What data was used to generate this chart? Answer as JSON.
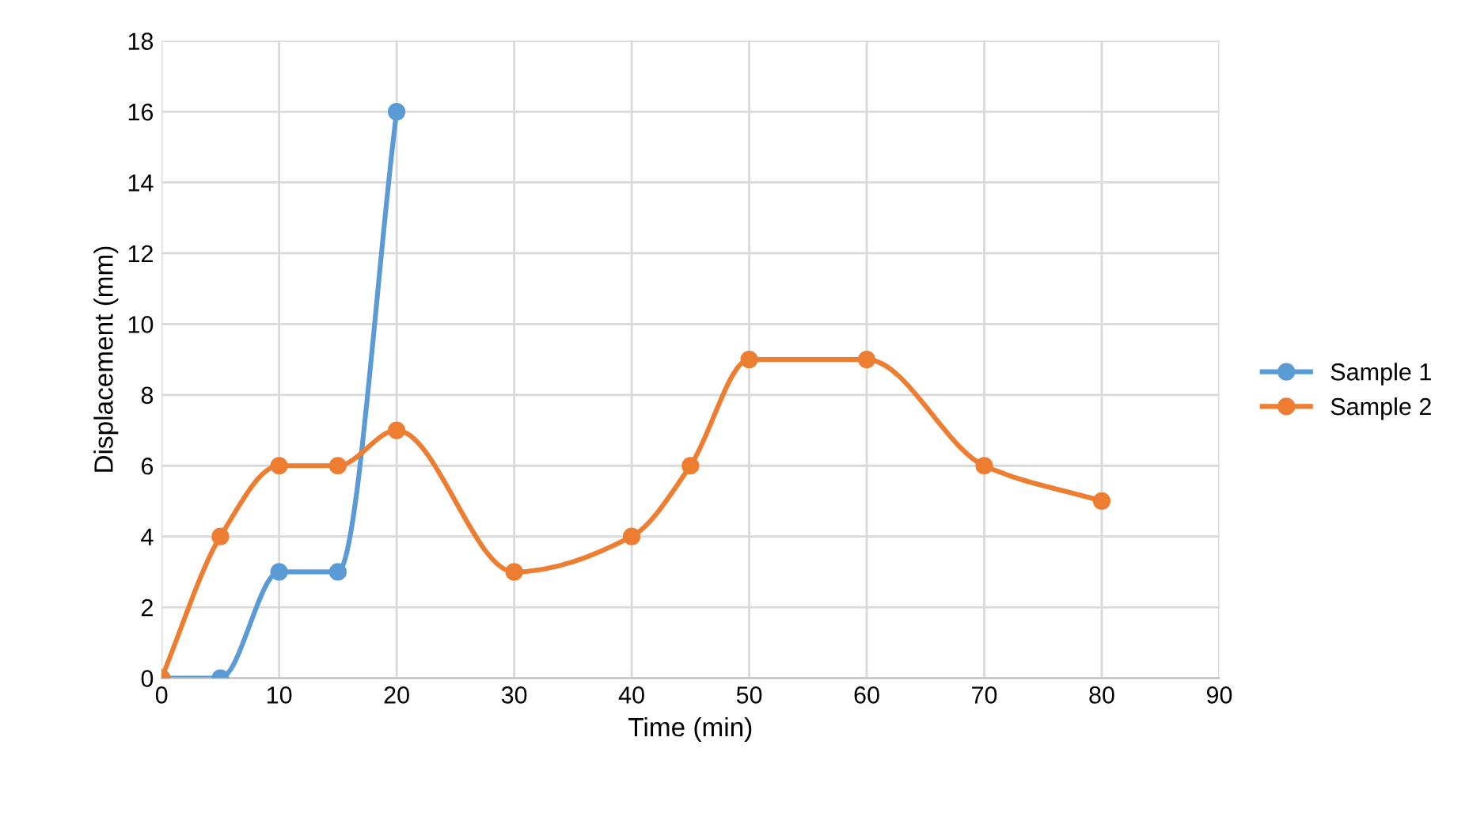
{
  "chart_data": {
    "type": "line",
    "xlabel": "Time (min)",
    "ylabel": "Displacement (mm)",
    "xlim": [
      0,
      90
    ],
    "xticks": [
      0,
      10,
      20,
      30,
      40,
      50,
      60,
      70,
      80,
      90
    ],
    "ylim": [
      0,
      18
    ],
    "yticks": [
      0,
      2,
      4,
      6,
      8,
      10,
      12,
      14,
      16,
      18
    ],
    "grid": true,
    "legend": "right",
    "marker": "circle",
    "line_style": "solid",
    "series": [
      {
        "name": "Sample 1",
        "color": "#5b9bd5",
        "x": [
          0,
          5,
          10,
          15,
          20
        ],
        "values": [
          0,
          0,
          3,
          3,
          16
        ]
      },
      {
        "name": "Sample 2",
        "color": "#ed7d31",
        "x": [
          0,
          5,
          10,
          15,
          20,
          30,
          40,
          45,
          50,
          60,
          70,
          80
        ],
        "values": [
          0,
          4,
          6,
          6,
          7,
          3,
          4,
          6,
          9,
          9,
          6,
          5
        ]
      }
    ]
  }
}
